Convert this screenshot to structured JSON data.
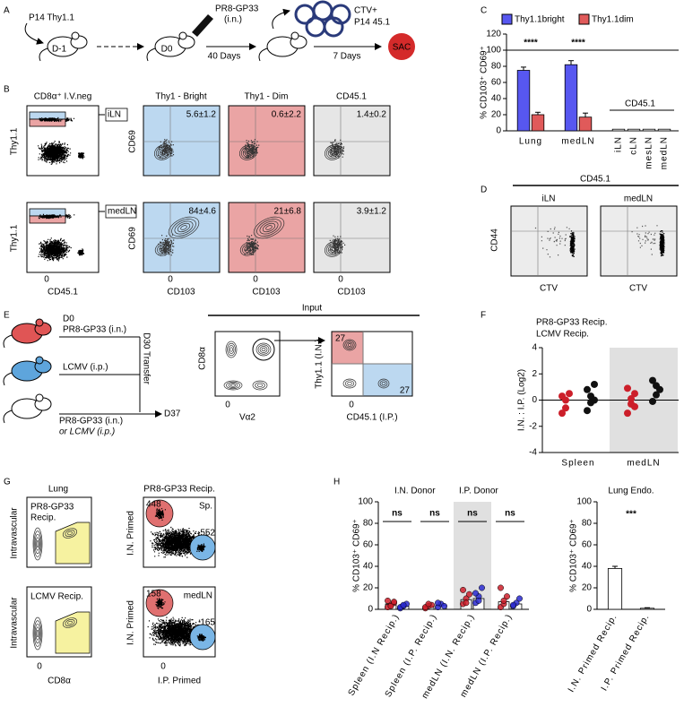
{
  "panel_a": {
    "letter": "A",
    "donor": "P14 Thy1.1",
    "day_minus1": "D-1",
    "day0": "D0",
    "infection": "PR8-GP33",
    "route": "(i.n.)",
    "interval1": "40 Days",
    "transfer_line1": "CTV+",
    "transfer_line2": "P14 45.1",
    "interval2": "7 Days",
    "endpoint": "SAC"
  },
  "panel_b": {
    "letter": "B",
    "gate_title": "CD8α⁺ I.V.neg",
    "column_titles": [
      "Thy1 - Bright",
      "Thy1 - Dim",
      "CD45.1"
    ],
    "rows": [
      {
        "tissue": "iLN",
        "stats": [
          "5.6±1.2",
          "0.6±2.2",
          "1.4±0.2"
        ]
      },
      {
        "tissue": "medLN",
        "stats": [
          "84±4.6",
          "21±6.8",
          "3.9±1.2"
        ]
      }
    ],
    "gate_ylabel": "Thy1.1",
    "plot_ylabel": "CD69",
    "gate_xlabel": "CD45.1",
    "plot_xlabel": "CD103",
    "zero": "0"
  },
  "panel_c": {
    "letter": "C"
  },
  "panel_d": {
    "letter": "D",
    "header": "CD45.1",
    "tissues": [
      "iLN",
      "medLN"
    ],
    "ylabel": "CD44",
    "xlabel": "CTV"
  },
  "panel_e": {
    "letter": "E",
    "day0": "D0",
    "group1": "PR8-GP33 (i.n.)",
    "group2": "LCMV (i.p.)",
    "transfer": "D30 Transfer",
    "recipient_line1": "PR8-GP33 (i.n.)",
    "recipient_line2": "or LCMV (i.p.)",
    "endpoint": "D37",
    "input": "Input",
    "gate_ylabel": "CD8α",
    "gate_xlabel": "Vα2",
    "quad_ylabel": "Thy1.1 (I.N.)",
    "quad_xlabel": "CD45.1 (I.P.)",
    "quad_in": "27",
    "quad_ip": "27",
    "zero": "0"
  },
  "panel_f": {
    "letter": "F"
  },
  "panel_g": {
    "letter": "G",
    "tissue": "Lung",
    "recip1_lines": [
      "PR8-GP33",
      "Recip."
    ],
    "recip2": "LCMV   Recip.",
    "ylabel": "Intravascular",
    "xlabel": "CD8α",
    "header": "PR8-GP33 Recip.",
    "primed_ylabel": "I.N. Primed",
    "primed_xlabel": "I.P. Primed",
    "rows": [
      {
        "tissue": "Sp.",
        "in_count": "448",
        "ip_count": "552"
      },
      {
        "tissue": "medLN",
        "in_count": "158",
        "ip_count": "165"
      }
    ],
    "zero": "0"
  },
  "panel_h": {
    "letter": "H"
  },
  "chart_data": [
    {
      "type": "bar",
      "ylabel": "% CD103⁺ CD69⁺",
      "categories": [
        "Lung",
        "medLN",
        "iLN",
        "cLN",
        "mesLN",
        "medLN"
      ],
      "series": [
        {
          "name": "Thy1.1bright",
          "color": "#5757f0",
          "values": [
            75,
            82,
            null,
            null,
            null,
            null
          ],
          "errors": [
            4,
            5,
            null,
            null,
            null,
            null
          ]
        },
        {
          "name": "Thy1.1dim",
          "color": "#e05a5a",
          "values": [
            20,
            17,
            null,
            null,
            null,
            null
          ],
          "errors": [
            3,
            5,
            null,
            null,
            null,
            null
          ]
        },
        {
          "name": "CD45.1",
          "color": "#ffffff",
          "values": [
            null,
            null,
            2,
            2,
            2,
            2
          ]
        }
      ],
      "significance": [
        "****",
        "****",
        null,
        null,
        null,
        null
      ],
      "reference_line": 100,
      "ylim": [
        0,
        120
      ],
      "yticks": [
        0,
        20,
        40,
        60,
        80,
        100,
        120
      ]
    },
    {
      "type": "strip",
      "ylabel": "I.N. : I.P. (Log2)",
      "categories": [
        "Spleen",
        "medLN"
      ],
      "series": [
        {
          "name": "PR8-GP33 Recip.",
          "color": "#cc1f2a",
          "values": [
            [
              0.3,
              -0.6,
              0.5,
              -1.0,
              0.0
            ],
            [
              0.9,
              -0.3,
              0.5,
              -1.0,
              0.1,
              -0.5
            ]
          ]
        },
        {
          "name": "LCMV   Recip.",
          "color": "#111111",
          "values": [
            [
              0.8,
              0.3,
              1.2,
              -0.8,
              -0.2,
              0.0
            ],
            [
              1.5,
              0.4,
              0.8,
              -0.1,
              1.1
            ]
          ]
        }
      ],
      "reference_line": 0,
      "shaded": [
        1
      ],
      "ylim": [
        -4,
        4
      ],
      "yticks": [
        -4,
        -2,
        0,
        2,
        4
      ]
    },
    {
      "type": "bar",
      "ylabel": "% CD103⁺ CD69⁺",
      "categories": [
        "Spleen (I.N Recip.)",
        "Spleen (I.P. Recip.)",
        "medLN (I.N. Recip.)",
        "medLN (I.P. Recip.)"
      ],
      "series": [
        {
          "name": "I.N. Donor",
          "color": "#cc1f2a",
          "values": [
            5,
            3,
            9,
            7
          ],
          "points": [
            [
              2,
              4,
              6,
              8,
              3,
              7
            ],
            [
              1,
              3,
              4,
              2,
              5
            ],
            [
              5,
              10,
              14,
              18,
              6
            ],
            [
              2,
              5,
              12,
              20,
              8
            ]
          ]
        },
        {
          "name": "I.P. Donor",
          "color": "#2a2ad0",
          "values": [
            3,
            4,
            10,
            5
          ],
          "points": [
            [
              1,
              3,
              5,
              2,
              4
            ],
            [
              2,
              5,
              3,
              6
            ],
            [
              6,
              12,
              20,
              15,
              8
            ],
            [
              3,
              6,
              10,
              4
            ]
          ]
        }
      ],
      "significance": [
        "ns",
        "ns",
        "ns",
        "ns"
      ],
      "shaded": [
        2
      ],
      "ylim": [
        0,
        100
      ],
      "yticks": [
        0,
        20,
        40,
        60,
        80,
        100
      ]
    },
    {
      "type": "bar",
      "title": "Lung Endo.",
      "ylabel": "% CD103⁺ CD69⁺",
      "categories": [
        "I.N. Primed Recip.",
        "I.P. Primed Recip."
      ],
      "series": [
        {
          "color": "#ffffff",
          "values": [
            38,
            1
          ],
          "errors": [
            2,
            0.5
          ]
        }
      ],
      "significance": [
        "***",
        null
      ],
      "ylim": [
        0,
        100
      ],
      "yticks": [
        0,
        20,
        40,
        60,
        80,
        100
      ]
    }
  ]
}
